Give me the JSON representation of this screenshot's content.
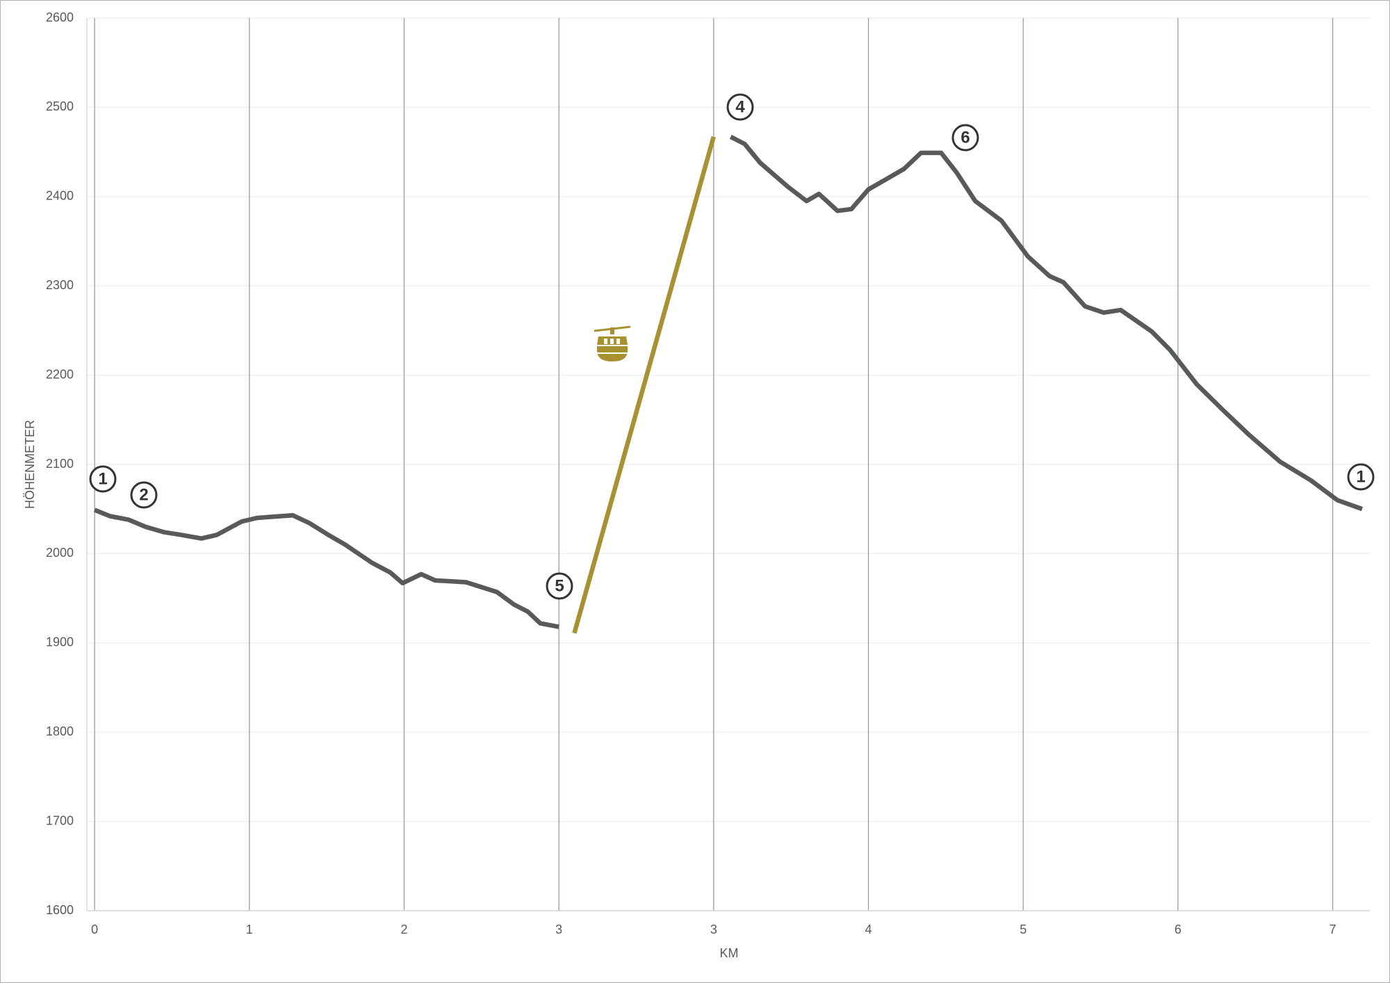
{
  "chart_data": {
    "type": "line",
    "x_label": "KM",
    "y_label": "HÖHENMETER",
    "xlim": [
      -0.05,
      8.24
    ],
    "ylim": [
      1600,
      2600
    ],
    "xticks": [
      0,
      1,
      2,
      3,
      {
        "value": 4,
        "label": "3"
      },
      {
        "value": 5,
        "label": "4"
      },
      {
        "value": 6,
        "label": "5"
      },
      {
        "value": 7,
        "label": "6"
      },
      {
        "value": 8,
        "label": "7"
      }
    ],
    "yticks": [
      1600,
      1700,
      1800,
      1900,
      2000,
      2100,
      2200,
      2300,
      2400,
      2500,
      2600
    ],
    "grid": true,
    "series": [
      {
        "color": "#58595b",
        "x": [
          0,
          0.1,
          0.22,
          0.33,
          0.45,
          0.56,
          0.69,
          0.79,
          0.95,
          1.05,
          1.28,
          1.39,
          1.51,
          1.62,
          1.79,
          1.91,
          1.99,
          2.11,
          2.2,
          2.4,
          2.6,
          2.71,
          2.8,
          2.88,
          3.0,
          3.5,
          4.11,
          4.2,
          4.3,
          4.48,
          4.6,
          4.68,
          4.8,
          4.89,
          5.0,
          5.11,
          5.23,
          5.34,
          5.47,
          5.57,
          5.69,
          5.86,
          6.03,
          6.17,
          6.26,
          6.4,
          6.52,
          6.63,
          6.83,
          6.95,
          7.12,
          7.29,
          7.46,
          7.66,
          7.86,
          8.03,
          8.19
        ],
        "values": [
          2049,
          2042,
          2038,
          2030,
          2024,
          2021,
          2017,
          2021,
          2036,
          2040,
          2043,
          2034,
          2021,
          2010,
          1990,
          1979,
          1967,
          1977,
          1970,
          1968,
          1957,
          1943,
          1935,
          1922,
          1918,
          null,
          2467,
          2459,
          2438,
          2411,
          2395,
          2403,
          2384,
          2386,
          2408,
          2419,
          2431,
          2449,
          2449,
          2427,
          2395,
          2373,
          2333,
          2311,
          2304,
          2277,
          2270,
          2273,
          2249,
          2228,
          2190,
          2161,
          2133,
          2103,
          2082,
          2060,
          2050
        ]
      },
      {
        "color": "#a8912f",
        "x": [
          3.1,
          4.0
        ],
        "values": [
          1911,
          2467
        ]
      }
    ],
    "annotations": [
      "1",
      "2",
      "5",
      "4",
      "6",
      "1"
    ]
  }
}
